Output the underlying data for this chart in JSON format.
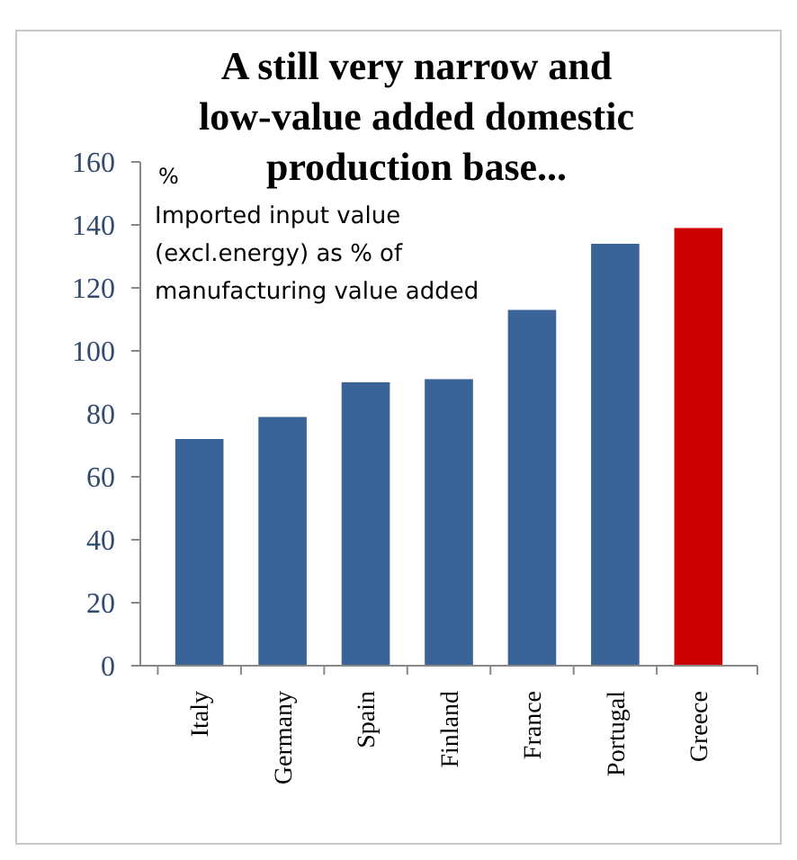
{
  "chart_data": {
    "type": "bar",
    "title": "A  still very narrow and low-value added  domestic production base...",
    "ylabel": "%",
    "annotations": [
      "Imported input value (excl.energy) as % of manufacturing value added"
    ],
    "categories": [
      "Italy",
      "Germany",
      "Spain",
      "Finland",
      "France",
      "Portugal",
      "Greece"
    ],
    "values": [
      72,
      79,
      90,
      91,
      113,
      134,
      139
    ],
    "colors": [
      "#3a6397",
      "#3a6397",
      "#3a6397",
      "#3a6397",
      "#3a6397",
      "#3a6397",
      "#cc0000"
    ],
    "ylim": [
      0,
      160
    ],
    "yticks": [
      0,
      20,
      40,
      60,
      80,
      100,
      120,
      140,
      160
    ],
    "grid": false
  }
}
